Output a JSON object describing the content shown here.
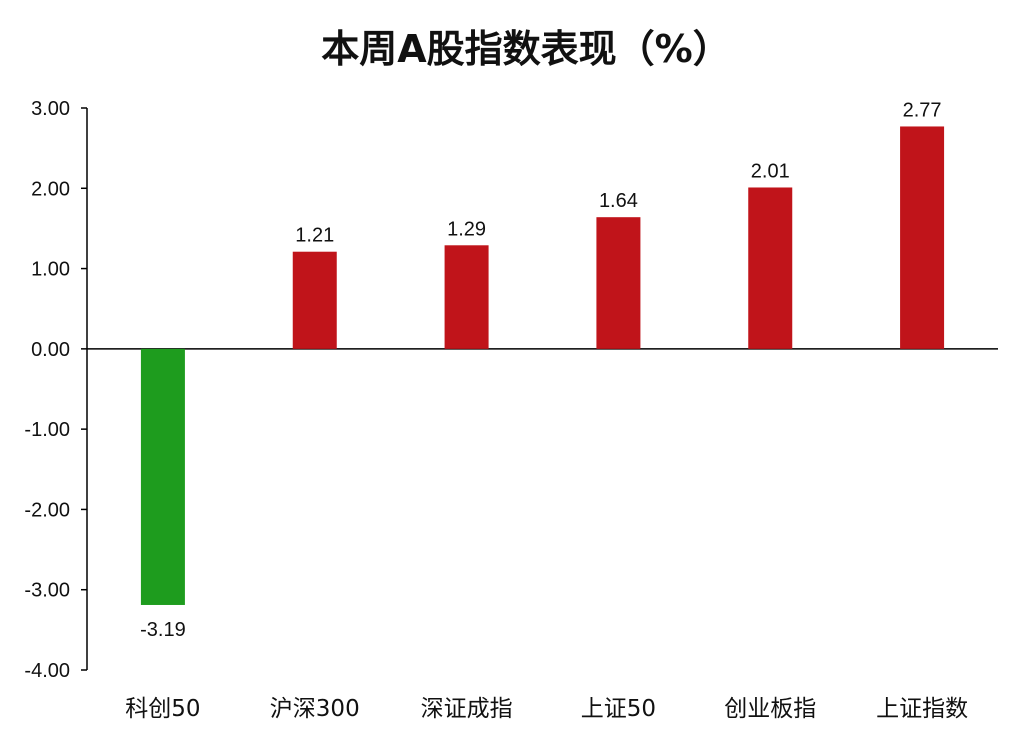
{
  "chart_data": {
    "type": "bar",
    "title": "本周A股指数表现（%）",
    "xlabel": "",
    "ylabel": "",
    "categories": [
      "科创50",
      "沪深300",
      "深证成指",
      "上证50",
      "创业板指",
      "上证指数"
    ],
    "values": [
      -3.19,
      1.21,
      1.29,
      1.64,
      2.01,
      2.77
    ],
    "value_labels": [
      "-3.19",
      "1.21",
      "1.29",
      "1.64",
      "2.01",
      "2.77"
    ],
    "ylim": [
      -4,
      3
    ],
    "y_ticks": [
      3,
      2,
      1,
      0,
      -1,
      -2,
      -3,
      -4
    ],
    "y_tick_labels": [
      "3.00",
      "2.00",
      "1.00",
      "0.00",
      "-1.00",
      "-2.00",
      "-3.00",
      "-4.00"
    ],
    "grid": false,
    "legend": "none",
    "colors": {
      "positive": "#C0141A",
      "negative": "#1E9C1E"
    }
  }
}
